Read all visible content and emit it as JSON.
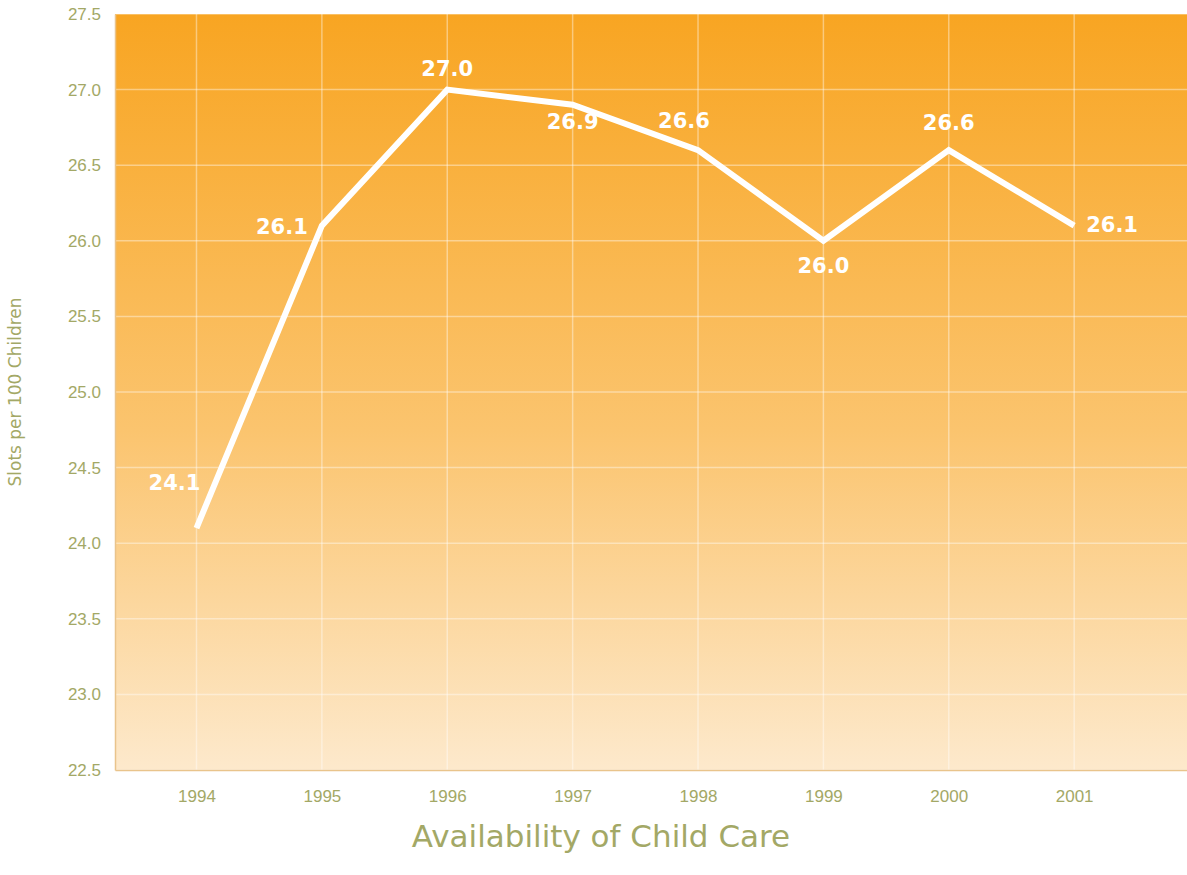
{
  "chart_data": {
    "type": "line",
    "title": "Availability of Child Care",
    "y_label": "Slots per 100 Children",
    "x": [
      1994,
      1995,
      1996,
      1997,
      1998,
      1999,
      2000,
      2001
    ],
    "values": [
      24.1,
      26.1,
      27.0,
      26.9,
      26.6,
      26.0,
      26.6,
      26.1
    ],
    "value_labels": [
      "24.1",
      "26.1",
      "27.0",
      "26.9",
      "26.6",
      "26.0",
      "26.6",
      "26.1"
    ],
    "color": "#ffffff",
    "marker": "none",
    "line_style": "solid",
    "data_labels": true,
    "grid": true,
    "xlim": [
      1993.35,
      2001.9
    ],
    "xticks": [
      1994,
      1995,
      1996,
      1997,
      1998,
      1999,
      2000,
      2001
    ],
    "ylim": [
      22.5,
      27.5
    ],
    "yticks": [
      22.5,
      {
        "value": 23,
        "label": "23.0"
      },
      23.5,
      {
        "value": 24,
        "label": "24.0"
      },
      24.5,
      {
        "value": 25,
        "label": "25.0"
      },
      25.5,
      {
        "value": 26,
        "label": "26.0"
      },
      26.5,
      {
        "value": 27,
        "label": "27.0"
      },
      27.5
    ]
  }
}
